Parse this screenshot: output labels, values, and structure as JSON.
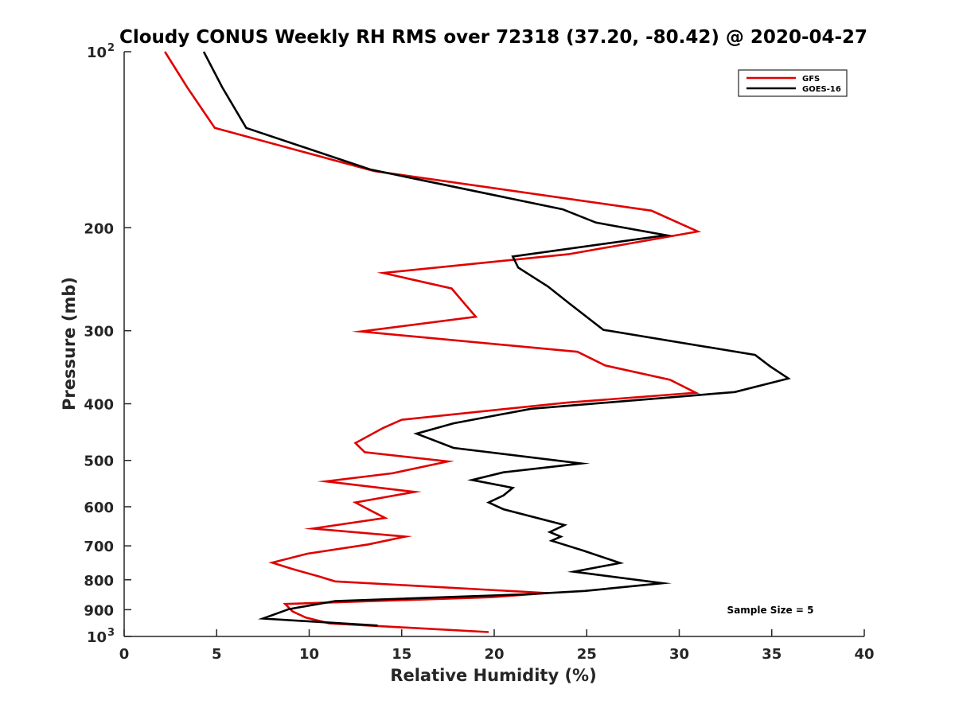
{
  "chart_data": {
    "type": "line",
    "title": "Cloudy CONUS Weekly RH RMS over 72318 (37.20, -80.42) @ 2020-04-27",
    "xlabel": "Relative Humidity (%)",
    "ylabel": "Pressure (mb)",
    "xlim": [
      0,
      40
    ],
    "ylim": [
      100,
      1000
    ],
    "yscale": "log",
    "y_reversed": true,
    "x_ticks": [
      0,
      5,
      10,
      15,
      20,
      25,
      30,
      35,
      40
    ],
    "x_tick_labels": [
      "0",
      "5",
      "10",
      "15",
      "20",
      "25",
      "30",
      "35",
      "40"
    ],
    "y_ticks": [
      {
        "value": 100,
        "base": "10",
        "exp": "2"
      },
      {
        "value": 200,
        "label": "200"
      },
      {
        "value": 300,
        "label": "300"
      },
      {
        "value": 400,
        "label": "400"
      },
      {
        "value": 500,
        "label": "500"
      },
      {
        "value": 600,
        "label": "600"
      },
      {
        "value": 700,
        "label": "700"
      },
      {
        "value": 800,
        "label": "800"
      },
      {
        "value": 900,
        "label": "900"
      },
      {
        "value": 1000,
        "base": "10",
        "exp": "3"
      }
    ],
    "grid": false,
    "legend_position": "top-right",
    "annotation": "Sample Size = 5",
    "series": [
      {
        "name": "GFS",
        "color": "#e00000",
        "points": [
          [
            2.2,
            100
          ],
          [
            3.4,
            115
          ],
          [
            4.9,
            135
          ],
          [
            13.5,
            160
          ],
          [
            28.5,
            187
          ],
          [
            31.0,
            203
          ],
          [
            24.0,
            222
          ],
          [
            14.0,
            239
          ],
          [
            17.7,
            254
          ],
          [
            19.0,
            284
          ],
          [
            12.8,
            301
          ],
          [
            24.5,
            326
          ],
          [
            26.0,
            344
          ],
          [
            29.5,
            364
          ],
          [
            30.9,
            383
          ],
          [
            24.0,
            398
          ],
          [
            15.0,
            426
          ],
          [
            14.0,
            440
          ],
          [
            12.5,
            467
          ],
          [
            13.0,
            484
          ],
          [
            17.5,
            502
          ],
          [
            14.5,
            526
          ],
          [
            10.9,
            543
          ],
          [
            15.7,
            566
          ],
          [
            12.5,
            590
          ],
          [
            13.4,
            611
          ],
          [
            14.1,
            627
          ],
          [
            10.2,
            654
          ],
          [
            15.2,
            675
          ],
          [
            13.2,
            696
          ],
          [
            9.9,
            722
          ],
          [
            8.0,
            748
          ],
          [
            9.1,
            767
          ],
          [
            10.5,
            789
          ],
          [
            11.4,
            805
          ],
          [
            22.9,
            843
          ],
          [
            19.8,
            857
          ],
          [
            8.7,
            880
          ],
          [
            9.1,
            906
          ],
          [
            9.8,
            928
          ],
          [
            11.1,
            950
          ],
          [
            19.7,
            983
          ]
        ]
      },
      {
        "name": "GOES-16",
        "color": "#000000",
        "points": [
          [
            4.3,
            100
          ],
          [
            5.3,
            115
          ],
          [
            6.6,
            135
          ],
          [
            13.3,
            159
          ],
          [
            23.7,
            186
          ],
          [
            25.5,
            196
          ],
          [
            29.3,
            206
          ],
          [
            21.0,
            224
          ],
          [
            21.3,
            234
          ],
          [
            22.9,
            252
          ],
          [
            24.1,
            270
          ],
          [
            25.9,
            299
          ],
          [
            34.1,
            330
          ],
          [
            34.9,
            345
          ],
          [
            35.9,
            362
          ],
          [
            33.0,
            382
          ],
          [
            22.0,
            408
          ],
          [
            17.8,
            432
          ],
          [
            15.8,
            450
          ],
          [
            17.8,
            476
          ],
          [
            24.7,
            506
          ],
          [
            20.5,
            524
          ],
          [
            18.8,
            540
          ],
          [
            21.0,
            557
          ],
          [
            20.5,
            574
          ],
          [
            19.7,
            590
          ],
          [
            20.5,
            606
          ],
          [
            23.8,
            645
          ],
          [
            23.0,
            663
          ],
          [
            23.6,
            675
          ],
          [
            23.1,
            686
          ],
          [
            24.8,
            713
          ],
          [
            26.8,
            749
          ],
          [
            24.3,
            775
          ],
          [
            29.1,
            811
          ],
          [
            24.9,
            836
          ],
          [
            21.7,
            847
          ],
          [
            11.4,
            870
          ],
          [
            8.9,
            898
          ],
          [
            7.5,
            932
          ],
          [
            13.7,
            958
          ]
        ]
      }
    ]
  }
}
